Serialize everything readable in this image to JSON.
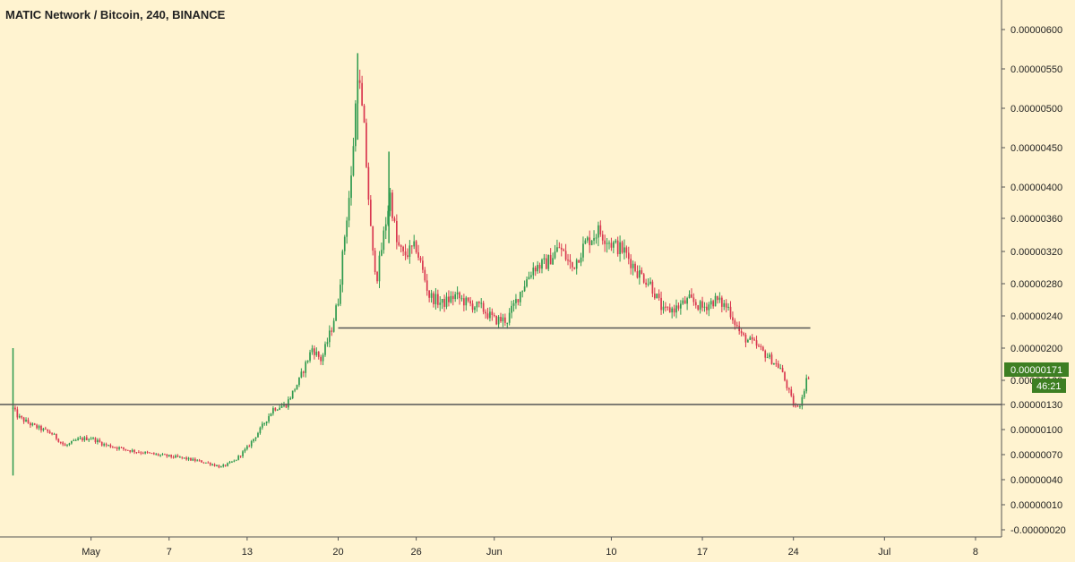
{
  "chart_data": {
    "type": "candlestick",
    "title": "MATIC Network / Bitcoin, 240, BINANCE",
    "y_ticks": [
      "0.00000600",
      "0.00000550",
      "0.00000500",
      "0.00000450",
      "0.00000400",
      "0.00000360",
      "0.00000320",
      "0.00000280",
      "0.00000240",
      "0.00000200",
      "0.00000160",
      "0.00000130",
      "0.00000100",
      "0.00000070",
      "0.00000040",
      "0.00000010",
      "-0.00000020"
    ],
    "y_tick_values": [
      6.0,
      5.5,
      5.0,
      4.5,
      4.0,
      3.6,
      3.2,
      2.8,
      2.4,
      2.0,
      1.6,
      1.3,
      1.0,
      0.7,
      0.4,
      0.1,
      -0.2
    ],
    "x_ticks": [
      {
        "label": "May",
        "day": 7
      },
      {
        "label": "7",
        "day": 13
      },
      {
        "label": "13",
        "day": 19
      },
      {
        "label": "20",
        "day": 26
      },
      {
        "label": "26",
        "day": 32
      },
      {
        "label": "Jun",
        "day": 38
      },
      {
        "label": "10",
        "day": 47
      },
      {
        "label": "17",
        "day": 54
      },
      {
        "label": "24",
        "day": 61
      },
      {
        "label": "Jul",
        "day": 68
      },
      {
        "label": "8",
        "day": 75
      }
    ],
    "x_axis_start_day": 0,
    "x_axis_end_day": 77,
    "price_anchors": [
      [
        1.0,
        1.25
      ],
      [
        1.4,
        1.15
      ],
      [
        2.5,
        1.05
      ],
      [
        4,
        0.95
      ],
      [
        5,
        0.8
      ],
      [
        6,
        0.88
      ],
      [
        7,
        0.9
      ],
      [
        8,
        0.82
      ],
      [
        10,
        0.75
      ],
      [
        12,
        0.7
      ],
      [
        14,
        0.66
      ],
      [
        16,
        0.6
      ],
      [
        17,
        0.55
      ],
      [
        18,
        0.62
      ],
      [
        19,
        0.78
      ],
      [
        20,
        1.0
      ],
      [
        21,
        1.25
      ],
      [
        22,
        1.3
      ],
      [
        23,
        1.6
      ],
      [
        24,
        2.0
      ],
      [
        24.7,
        1.85
      ],
      [
        25.5,
        2.25
      ],
      [
        26,
        2.6
      ],
      [
        26.5,
        3.4
      ],
      [
        27,
        4.1
      ],
      [
        27.5,
        5.5
      ],
      [
        28,
        4.7
      ],
      [
        28.6,
        3.2
      ],
      [
        29,
        2.9
      ],
      [
        29.6,
        3.5
      ],
      [
        30,
        3.9
      ],
      [
        30.5,
        3.3
      ],
      [
        31,
        3.15
      ],
      [
        32,
        3.25
      ],
      [
        33,
        2.65
      ],
      [
        34,
        2.55
      ],
      [
        35,
        2.65
      ],
      [
        36,
        2.55
      ],
      [
        37,
        2.5
      ],
      [
        38,
        2.35
      ],
      [
        39,
        2.35
      ],
      [
        40,
        2.7
      ],
      [
        41,
        3.0
      ],
      [
        42,
        3.05
      ],
      [
        43,
        3.25
      ],
      [
        44,
        3.0
      ],
      [
        45,
        3.3
      ],
      [
        46,
        3.45
      ],
      [
        47,
        3.3
      ],
      [
        48,
        3.2
      ],
      [
        49,
        2.95
      ],
      [
        50,
        2.8
      ],
      [
        51,
        2.45
      ],
      [
        52,
        2.5
      ],
      [
        53,
        2.6
      ],
      [
        54,
        2.5
      ],
      [
        55,
        2.6
      ],
      [
        56,
        2.5
      ],
      [
        57,
        2.15
      ],
      [
        58,
        2.05
      ],
      [
        59,
        1.9
      ],
      [
        60,
        1.75
      ],
      [
        61,
        1.3
      ],
      [
        61.4,
        1.25
      ],
      [
        62,
        1.6
      ],
      [
        62.3,
        1.71
      ]
    ],
    "spikes": [
      {
        "day": 1.0,
        "high": 2.0,
        "low": 0.45
      },
      {
        "day": 27.5,
        "high": 5.7,
        "low": 4.6
      },
      {
        "day": 29.9,
        "high": 4.45,
        "low": 3.3
      }
    ],
    "horizontal_lines": [
      {
        "price": 1.3,
        "from_day": 0,
        "to_day": 77
      },
      {
        "price": 2.25,
        "from_day": 26,
        "to_day": 62.3
      }
    ],
    "last_price_label": "0.00000171",
    "countdown_label": "46:21",
    "colors": {
      "background": "#fff3d0",
      "up": "#2e9a4e",
      "down": "#d9374f",
      "level_line": "#555555",
      "price_tag": "#3d7f22"
    }
  }
}
